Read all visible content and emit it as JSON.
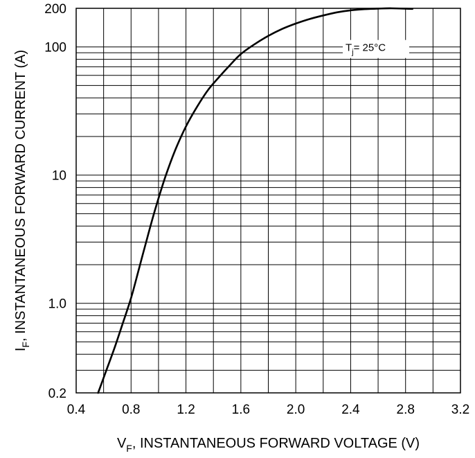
{
  "chart_data": {
    "type": "line",
    "title": "",
    "xlabel": {
      "symbol": "V",
      "subscript": "F",
      "text": ", INSTANTANEOUS FORWARD VOLTAGE (V)"
    },
    "ylabel": {
      "symbol": "I",
      "subscript": "F",
      "text": ", INSTANTANEOUS FORWARD CURRENT (A)"
    },
    "xlim": [
      0.4,
      3.2
    ],
    "ylim": [
      0.2,
      200
    ],
    "yscale": "log",
    "grid": true,
    "x_tick_labels": [
      "0.4",
      "0.8",
      "1.2",
      "1.6",
      "2.0",
      "2.4",
      "2.8",
      "3.2"
    ],
    "y_tick_labels": [
      {
        "value": 0.2,
        "label": "0.2"
      },
      {
        "value": 1,
        "label": "1.0"
      },
      {
        "value": 10,
        "label": "10"
      },
      {
        "value": 100,
        "label": "100"
      },
      {
        "value": 200,
        "label": "200"
      }
    ],
    "annotation": {
      "symbol": "T",
      "subscript": "j",
      "text": "=  25°C"
    },
    "series": [
      {
        "color": "#000000",
        "x": [
          0.56,
          0.62,
          0.68,
          0.74,
          0.8,
          0.86,
          0.92,
          0.98,
          1.05,
          1.12,
          1.2,
          1.28,
          1.36,
          1.44,
          1.52,
          1.6,
          1.7,
          1.8,
          1.9,
          2.0,
          2.1,
          2.2,
          2.3,
          2.4,
          2.5,
          2.6,
          2.7,
          2.85
        ],
        "y": [
          0.2,
          0.3,
          0.45,
          0.7,
          1.1,
          1.9,
          3.3,
          5.6,
          9.7,
          15.5,
          24,
          34,
          46,
          58,
          72,
          88,
          105,
          122,
          138,
          152,
          165,
          176,
          186,
          193,
          197,
          199,
          200,
          198
        ]
      }
    ]
  }
}
